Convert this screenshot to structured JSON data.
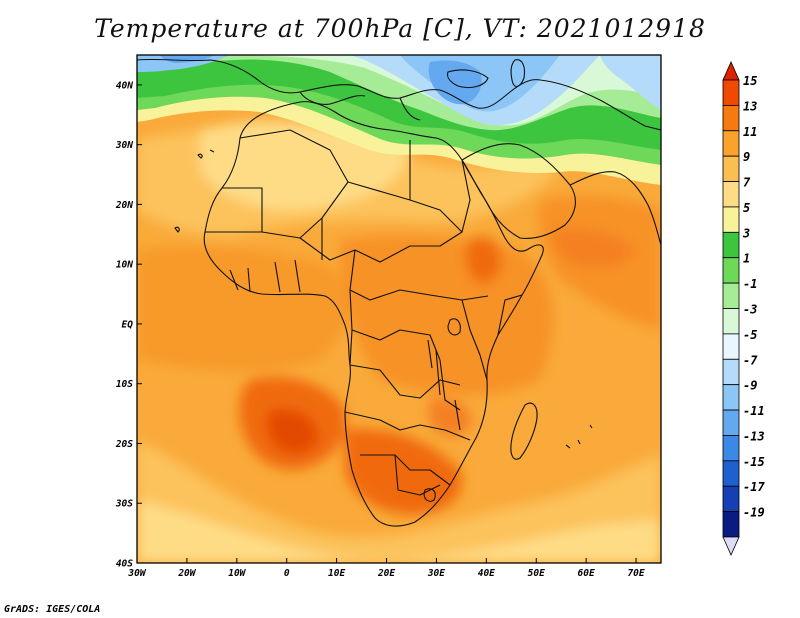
{
  "title": "Temperature at 700hPa [C], VT: 2021012918",
  "footer": "GrADS: IGES/COLA",
  "map": {
    "lon_range": [
      -30,
      75
    ],
    "lat_range": [
      -40,
      45
    ],
    "lon_ticks": [
      "30W",
      "20W",
      "10W",
      "0",
      "10E",
      "20E",
      "30E",
      "40E",
      "50E",
      "60E",
      "70E"
    ],
    "lat_ticks": [
      "40N",
      "30N",
      "20N",
      "10N",
      "EQ",
      "10S",
      "20S",
      "30S",
      "40S"
    ]
  },
  "colorbar": {
    "labels": [
      "15",
      "13",
      "11",
      "9",
      "7",
      "5",
      "3",
      "1",
      "-1",
      "-3",
      "-5",
      "-7",
      "-9",
      "-11",
      "-13",
      "-15",
      "-17",
      "-19"
    ],
    "colors": [
      "#dd2200",
      "#f04a00",
      "#f77a10",
      "#faa22a",
      "#fbbe50",
      "#fedc86",
      "#f8f39a",
      "#3ec540",
      "#6ed858",
      "#a6ec96",
      "#d8f8d8",
      "#e8f6ff",
      "#b4dcfa",
      "#8cc6f6",
      "#64a8f0",
      "#3c88e6",
      "#1e60d0",
      "#1440b4",
      "#0a1c82",
      "#dcdcf8"
    ]
  }
}
